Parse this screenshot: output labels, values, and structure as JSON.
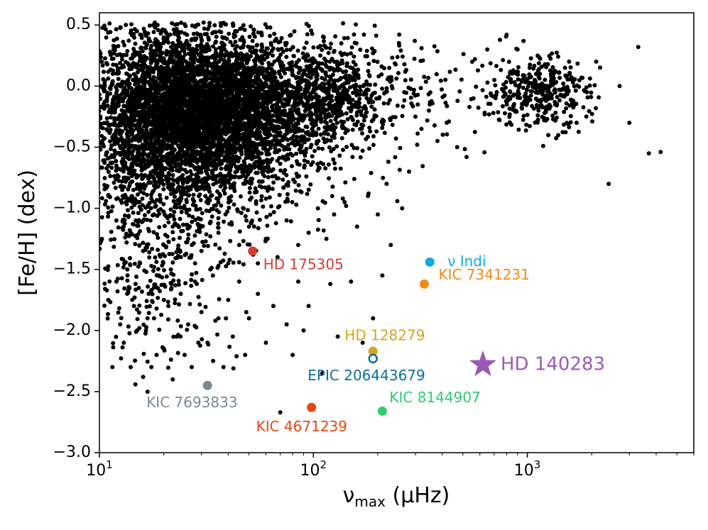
{
  "chart_data": {
    "type": "scatter",
    "xscale": "log",
    "xlim": [
      10,
      6000
    ],
    "ylim": [
      -3.0,
      0.6
    ],
    "xlabel": "ν",
    "xlabel_sub": "max",
    "xlabel_unit": " (μHz)",
    "ylabel": "[Fe/H] (dex)",
    "xticks": [
      {
        "value": 10,
        "base": "10",
        "exp": "1"
      },
      {
        "value": 100,
        "base": "10",
        "exp": "2"
      },
      {
        "value": 1000,
        "base": "10",
        "exp": "3"
      }
    ],
    "yticks": [
      {
        "value": 0.5,
        "label": "0.5"
      },
      {
        "value": 0.0,
        "label": "0.0"
      },
      {
        "value": -0.5,
        "label": "−0.5"
      },
      {
        "value": -1.0,
        "label": "−1.0"
      },
      {
        "value": -1.5,
        "label": "−1.5"
      },
      {
        "value": -2.0,
        "label": "−2.0"
      },
      {
        "value": -2.5,
        "label": "−2.5"
      },
      {
        "value": -3.0,
        "label": "−3.0"
      }
    ],
    "background_color": "#000000",
    "background_points": [
      [
        11,
        -1.75
      ],
      [
        11.5,
        -2.3
      ],
      [
        12,
        -1.6
      ],
      [
        12.5,
        -1.95
      ],
      [
        13,
        -2.1
      ],
      [
        13.5,
        -1.5
      ],
      [
        14,
        -2.3
      ],
      [
        14.5,
        -1.8
      ],
      [
        15,
        -2.0
      ],
      [
        15.5,
        -1.45
      ],
      [
        16,
        -2.38
      ],
      [
        16.5,
        -2.0
      ],
      [
        17,
        -1.7
      ],
      [
        17.5,
        -2.3
      ],
      [
        18,
        -1.9
      ],
      [
        18.5,
        -2.2
      ],
      [
        19,
        -1.55
      ],
      [
        20,
        -2.15
      ],
      [
        21,
        -1.8
      ],
      [
        22,
        -2.4
      ],
      [
        23,
        -2.05
      ],
      [
        24,
        -1.7
      ],
      [
        25,
        -2.2
      ],
      [
        26,
        -1.95
      ],
      [
        27,
        -2.3
      ],
      [
        28,
        -1.6
      ],
      [
        29,
        -2.1
      ],
      [
        30,
        -1.85
      ],
      [
        32,
        -2.1
      ],
      [
        34,
        -2.25
      ],
      [
        36,
        -1.9
      ],
      [
        38,
        -2.3
      ],
      [
        40,
        -1.75
      ],
      [
        42,
        -2.05
      ],
      [
        45,
        -1.6
      ],
      [
        48,
        -2.2
      ],
      [
        50,
        -1.9
      ],
      [
        55,
        -1.7
      ],
      [
        60,
        -2.1
      ],
      [
        65,
        -1.8
      ],
      [
        70,
        -2.67
      ],
      [
        75,
        -1.95
      ],
      [
        80,
        -2.2
      ],
      [
        85,
        -1.6
      ],
      [
        90,
        -2.0
      ],
      [
        95,
        -1.8
      ],
      [
        110,
        -2.35
      ],
      [
        120,
        -1.62
      ],
      [
        130,
        -2.05
      ],
      [
        150,
        -1.6
      ],
      [
        170,
        -2.1
      ],
      [
        190,
        -1.9
      ],
      [
        210,
        -1.55
      ],
      [
        230,
        -1.3
      ],
      [
        260,
        -1.0
      ],
      [
        280,
        -0.7
      ],
      [
        300,
        -0.25
      ],
      [
        320,
        -0.35
      ],
      [
        350,
        -0.15
      ],
      [
        380,
        -0.45
      ],
      [
        420,
        -0.3
      ],
      [
        470,
        -0.5
      ],
      [
        520,
        -0.58
      ],
      [
        560,
        -0.1
      ],
      [
        650,
        0.3
      ],
      [
        720,
        -0.05
      ],
      [
        800,
        0.42
      ],
      [
        900,
        0.3
      ],
      [
        1100,
        0.1
      ],
      [
        1300,
        -0.1
      ],
      [
        1500,
        0.15
      ],
      [
        1700,
        -0.3
      ],
      [
        1900,
        -0.05
      ],
      [
        2100,
        0.2
      ],
      [
        2400,
        -0.8
      ],
      [
        2700,
        0.0
      ],
      [
        3000,
        -0.3
      ],
      [
        3300,
        0.32
      ],
      [
        3700,
        -0.55
      ],
      [
        4200,
        -0.54
      ],
      [
        11,
        -0.9
      ],
      [
        12,
        -1.1
      ],
      [
        13,
        -0.75
      ],
      [
        14,
        -1.2
      ],
      [
        15,
        -0.95
      ],
      [
        16,
        -1.35
      ],
      [
        18,
        -1.05
      ],
      [
        20,
        -1.3
      ],
      [
        22,
        -1.15
      ],
      [
        24,
        -1.4
      ],
      [
        26,
        -1.25
      ],
      [
        28,
        -1.45
      ],
      [
        30,
        -1.35
      ],
      [
        33,
        -1.5
      ],
      [
        36,
        -1.2
      ],
      [
        40,
        -1.45
      ],
      [
        45,
        -1.3
      ],
      [
        50,
        -1.15
      ],
      [
        55,
        -1.45
      ],
      [
        60,
        -1.25
      ],
      [
        68,
        -1.4
      ],
      [
        75,
        -1.1
      ],
      [
        85,
        -1.3
      ],
      [
        95,
        -1.2
      ],
      [
        105,
        -1.0
      ],
      [
        115,
        -1.25
      ],
      [
        125,
        -1.05
      ],
      [
        140,
        -0.95
      ],
      [
        160,
        -1.15
      ],
      [
        180,
        -0.9
      ],
      [
        200,
        -1.05
      ],
      [
        220,
        -0.8
      ]
    ],
    "highlight_points": [
      {
        "name": "HD 175305",
        "x": 52,
        "y": -1.35,
        "color": "#D33C2E",
        "marker": "circle",
        "label_dx": 15,
        "label_dy": 20
      },
      {
        "name": "ν Indi",
        "x": 350,
        "y": -1.44,
        "color": "#10A8E0",
        "marker": "circle",
        "label_dx": 25,
        "label_dy": 0
      },
      {
        "name": "KIC 7341231",
        "x": 330,
        "y": -1.62,
        "color": "#F28A12",
        "marker": "circle",
        "label_dx": 20,
        "label_dy": -12
      },
      {
        "name": "HD 128279",
        "x": 190,
        "y": -2.17,
        "color": "#D6A41E",
        "marker": "circle",
        "label_dx": -40,
        "label_dy": -21
      },
      {
        "name": "EPIC 206443679",
        "x": 190,
        "y": -2.23,
        "color": "#0B6E99",
        "marker": "open-circle",
        "label_dx": -92,
        "label_dy": 25
      },
      {
        "name": "HD 140283",
        "x": 620,
        "y": -2.28,
        "color": "#9B59B6",
        "marker": "star",
        "label_dx": 25,
        "label_dy": 0
      },
      {
        "name": "KIC 7693833",
        "x": 32,
        "y": -2.45,
        "color": "#7A8896",
        "marker": "circle",
        "label_dx": -86,
        "label_dy": 25
      },
      {
        "name": "KIC 4671239",
        "x": 98,
        "y": -2.63,
        "color": "#E04A10",
        "marker": "circle",
        "label_dx": -78,
        "label_dy": 28
      },
      {
        "name": "KIC 8144907",
        "x": 210,
        "y": -2.66,
        "color": "#2ECC71",
        "marker": "circle",
        "label_dx": 10,
        "label_dy": -18
      }
    ]
  }
}
